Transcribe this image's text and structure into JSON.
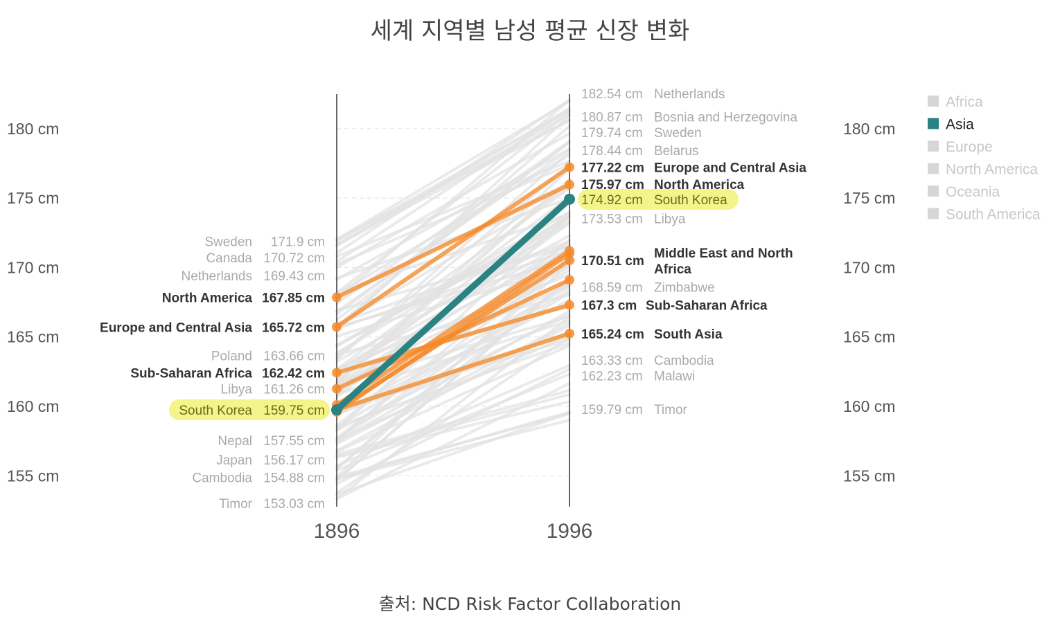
{
  "title": "세계 지역별 남성 평균 신장 변화",
  "source": "출처: NCD Risk Factor Collaboration",
  "colors": {
    "background_line": "#e3e3e3",
    "highlight_region": "#f68a2a",
    "selected": "#2a8282",
    "highlight_label_bg": "#f4f48a"
  },
  "legend": [
    {
      "label": "Africa",
      "active": false
    },
    {
      "label": "Asia",
      "active": true
    },
    {
      "label": "Europe",
      "active": false
    },
    {
      "label": "North America",
      "active": false
    },
    {
      "label": "Oceania",
      "active": false
    },
    {
      "label": "South America",
      "active": false
    }
  ],
  "chart_data": {
    "type": "line",
    "x": [
      "1896",
      "1996"
    ],
    "ylim": [
      153,
      182.5
    ],
    "yticks": [
      155,
      160,
      165,
      170,
      175,
      180
    ],
    "ytick_labels": [
      "155 cm",
      "160 cm",
      "165 cm",
      "170 cm",
      "175 cm",
      "180 cm"
    ],
    "unit": "cm",
    "selected_series": {
      "name": "South Korea",
      "values": [
        159.75,
        174.92
      ]
    },
    "region_series": [
      {
        "name": "North America",
        "values": [
          167.85,
          175.97
        ]
      },
      {
        "name": "Europe and Central Asia",
        "values": [
          165.72,
          177.22
        ]
      },
      {
        "name": "Sub-Saharan Africa",
        "values": [
          162.42,
          167.3
        ]
      },
      {
        "name": "Middle East and North Africa",
        "values": [
          null,
          170.51
        ]
      },
      {
        "name": "South Asia",
        "values": [
          null,
          165.24
        ]
      }
    ],
    "left_labels": [
      {
        "name": "Sweden",
        "value": "171.9 cm",
        "y": 171.9,
        "style": "grey"
      },
      {
        "name": "Canada",
        "value": "170.72 cm",
        "y": 170.72,
        "style": "grey"
      },
      {
        "name": "Netherlands",
        "value": "169.43 cm",
        "y": 169.43,
        "style": "grey"
      },
      {
        "name": "North America",
        "value": "167.85 cm",
        "y": 167.85,
        "style": "bold"
      },
      {
        "name": "Europe and Central Asia",
        "value": "165.72 cm",
        "y": 165.72,
        "style": "bold"
      },
      {
        "name": "Poland",
        "value": "163.66 cm",
        "y": 163.66,
        "style": "grey"
      },
      {
        "name": "Sub-Saharan Africa",
        "value": "162.42 cm",
        "y": 162.42,
        "style": "bold"
      },
      {
        "name": "Libya",
        "value": "161.26 cm",
        "y": 161.26,
        "style": "grey"
      },
      {
        "name": "South Korea",
        "value": "159.75 cm",
        "y": 159.75,
        "style": "highlight"
      },
      {
        "name": "Nepal",
        "value": "157.55 cm",
        "y": 157.55,
        "style": "grey"
      },
      {
        "name": "Japan",
        "value": "156.17 cm",
        "y": 156.17,
        "style": "grey"
      },
      {
        "name": "Cambodia",
        "value": "154.88 cm",
        "y": 154.88,
        "style": "grey"
      },
      {
        "name": "Timor",
        "value": "153.03 cm",
        "y": 153.03,
        "style": "grey"
      }
    ],
    "right_labels": [
      {
        "name": "Netherlands",
        "value": "182.54 cm",
        "y": 182.54,
        "style": "grey"
      },
      {
        "name": "Bosnia and Herzegovina",
        "value": "180.87 cm",
        "y": 180.87,
        "style": "grey"
      },
      {
        "name": "Sweden",
        "value": "179.74 cm",
        "y": 179.74,
        "style": "grey"
      },
      {
        "name": "Belarus",
        "value": "178.44 cm",
        "y": 178.44,
        "style": "grey"
      },
      {
        "name": "Europe and Central Asia",
        "value": "177.22 cm",
        "y": 177.22,
        "style": "bold"
      },
      {
        "name": "North America",
        "value": "175.97 cm",
        "y": 175.97,
        "style": "bold"
      },
      {
        "name": "South Korea",
        "value": "174.92 cm",
        "y": 174.92,
        "style": "highlight"
      },
      {
        "name": "Libya",
        "value": "173.53 cm",
        "y": 173.53,
        "style": "grey"
      },
      {
        "name": "Middle East and North Africa",
        "value": "170.51 cm",
        "y": 170.51,
        "style": "bold",
        "wrap": [
          "Middle East and North",
          "Africa"
        ]
      },
      {
        "name": "Zimbabwe",
        "value": "168.59 cm",
        "y": 168.59,
        "style": "grey"
      },
      {
        "name": "Sub-Saharan Africa",
        "value": "167.3 cm",
        "y": 167.3,
        "style": "bold"
      },
      {
        "name": "South Asia",
        "value": "165.24 cm",
        "y": 165.24,
        "style": "bold"
      },
      {
        "name": "Cambodia",
        "value": "163.33 cm",
        "y": 163.33,
        "style": "grey"
      },
      {
        "name": "Malawi",
        "value": "162.23 cm",
        "y": 162.23,
        "style": "grey"
      },
      {
        "name": "Timor",
        "value": "159.79 cm",
        "y": 159.79,
        "style": "grey"
      }
    ]
  }
}
